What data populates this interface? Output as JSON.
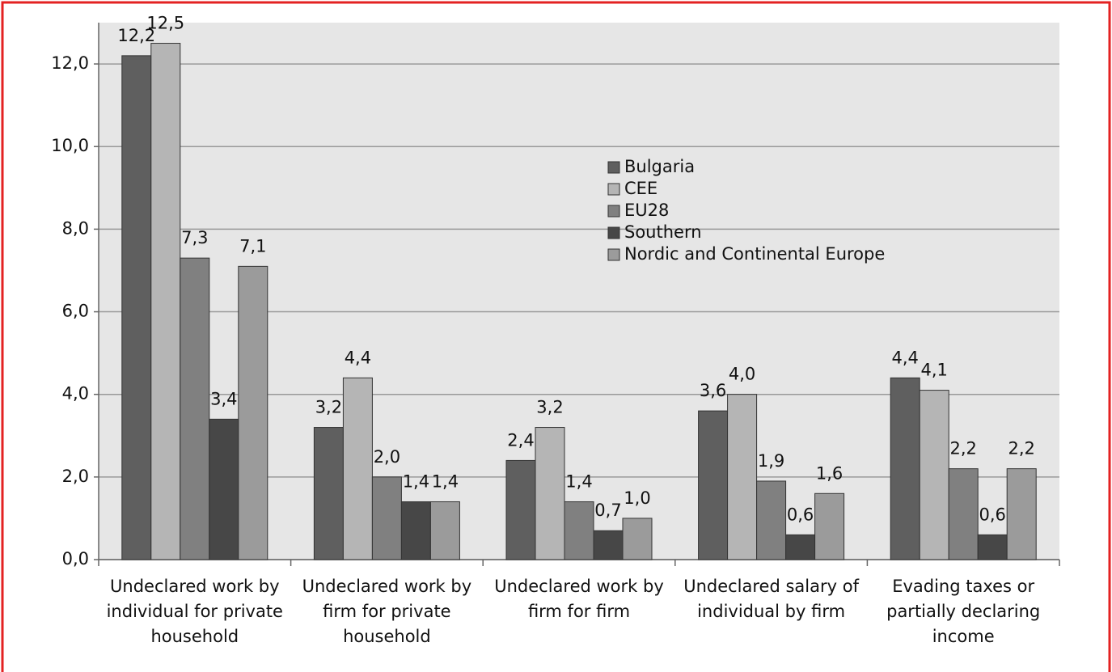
{
  "chart_data": {
    "type": "bar",
    "categories": [
      "Undeclared work by individual for private household",
      "Undeclared work by firm for private household",
      "Undeclared work by firm for firm",
      "Undeclared salary of individual by firm",
      "Evading taxes or partially declaring income"
    ],
    "series": [
      {
        "name": "Bulgaria",
        "color": "#5f5f5f",
        "values": [
          12.2,
          3.2,
          2.4,
          3.6,
          4.4
        ],
        "value_labels": [
          "12,2",
          "3,2",
          "2,4",
          "3,6",
          "4,4"
        ]
      },
      {
        "name": "CEE",
        "color": "#b5b5b5",
        "values": [
          12.5,
          4.4,
          3.2,
          4.0,
          4.1
        ],
        "value_labels": [
          "12,5",
          "4,4",
          "3,2",
          "4,0",
          "4,1"
        ]
      },
      {
        "name": "EU28",
        "color": "#808080",
        "values": [
          7.3,
          2.0,
          1.4,
          1.9,
          2.2
        ],
        "value_labels": [
          "7,3",
          "2,0",
          "1,4",
          "1,9",
          "2,2"
        ]
      },
      {
        "name": "Southern",
        "color": "#474747",
        "values": [
          3.4,
          1.4,
          0.7,
          0.6,
          0.6
        ],
        "value_labels": [
          "3,4",
          "1,4",
          "0,7",
          "0,6",
          "0,6"
        ]
      },
      {
        "name": "Nordic and Continental Europe",
        "color": "#9b9b9b",
        "values": [
          7.1,
          1.4,
          1.0,
          1.6,
          2.2
        ],
        "value_labels": [
          "7,1",
          "1,4",
          "1,0",
          "1,6",
          "2,2"
        ]
      }
    ],
    "ylim": [
      0,
      13
    ],
    "yticks": [
      {
        "value": 0,
        "label": "0,0"
      },
      {
        "value": 2,
        "label": "2,0"
      },
      {
        "value": 4,
        "label": "4,0"
      },
      {
        "value": 6,
        "label": "6,0"
      },
      {
        "value": 8,
        "label": "8,0"
      },
      {
        "value": 10,
        "label": "10,0"
      },
      {
        "value": 12,
        "label": "12,0"
      }
    ],
    "grid": true,
    "legend": "top-center"
  }
}
